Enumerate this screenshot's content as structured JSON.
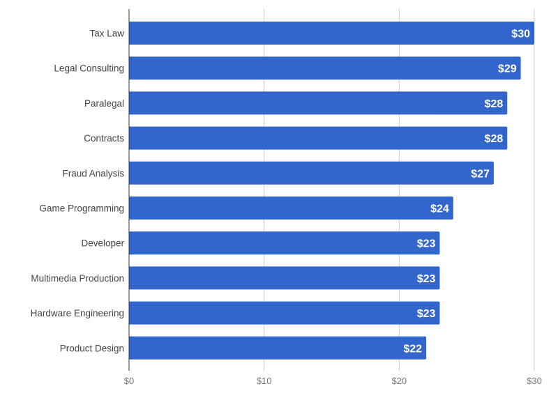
{
  "chart_data": {
    "type": "bar",
    "orientation": "horizontal",
    "title": "",
    "xlabel": "",
    "ylabel": "",
    "categories": [
      "Tax Law",
      "Legal Consulting",
      "Paralegal",
      "Contracts",
      "Fraud Analysis",
      "Game Programming",
      "Developer",
      "Multimedia Production",
      "Hardware Engineering",
      "Product Design"
    ],
    "values": [
      30,
      29,
      28,
      28,
      27,
      24,
      23,
      23,
      23,
      22
    ],
    "data_labels": [
      "$30",
      "$29",
      "$28",
      "$28",
      "$27",
      "$24",
      "$23",
      "$23",
      "$23",
      "$22"
    ],
    "xlim": [
      0,
      30
    ],
    "x_ticks": [
      0,
      10,
      20,
      30
    ],
    "x_tick_labels": [
      "$0",
      "$10",
      "$20",
      "$30"
    ],
    "grid": true,
    "legend": "none",
    "colors": {
      "bar": "#3366cc",
      "data_label": "#ffffff",
      "grid": "#cccccc",
      "axis": "#333333",
      "text": "#444444"
    }
  }
}
